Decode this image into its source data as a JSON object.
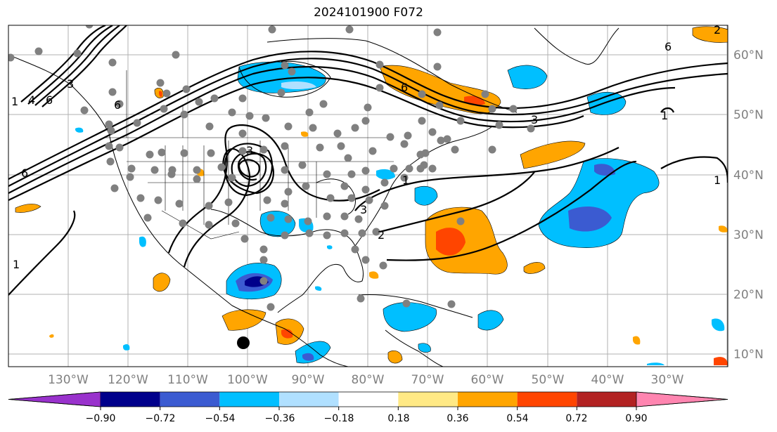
{
  "title": "2024101900 F072",
  "map": {
    "lon_ticks": [
      "130°W",
      "120°W",
      "110°W",
      "100°W",
      "90°W",
      "80°W",
      "70°W",
      "60°W",
      "50°W",
      "40°W",
      "30°W"
    ],
    "lat_ticks": [
      "60°N",
      "50°N",
      "40°N",
      "30°N",
      "20°N",
      "10°N"
    ],
    "contour_labels": [
      "6",
      "6",
      "6",
      "6",
      "1",
      "1",
      "1",
      "1",
      "1",
      "2",
      "2",
      "3",
      "3",
      "3",
      "3",
      "4",
      "6"
    ]
  },
  "colorbar": {
    "ticks": [
      "−0.90",
      "−0.72",
      "−0.54",
      "−0.36",
      "−0.18",
      "0.18",
      "0.36",
      "0.54",
      "0.72",
      "0.90"
    ],
    "colors": [
      "#9932cc",
      "#00008b",
      "#3b5bd1",
      "#00bfff",
      "#b0e0ff",
      "#ffffff",
      "#ffe985",
      "#ffa500",
      "#ff4500",
      "#b22222",
      "#ff85b0"
    ]
  },
  "colors": {
    "grid": "#b0b0b0",
    "axis_text": "#808080",
    "station_dot": "#808080",
    "contour": "#000000"
  }
}
